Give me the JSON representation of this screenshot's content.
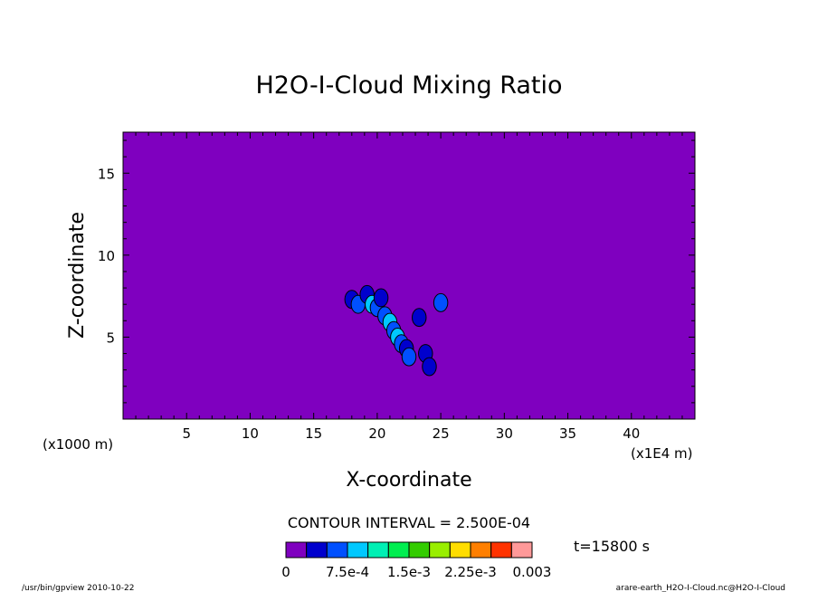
{
  "chart_data": {
    "type": "heatmap",
    "title": "H2O-I-Cloud Mixing Ratio",
    "xlabel": "X-coordinate",
    "ylabel": "Z-coordinate",
    "x_unit_label": "(x1000 m)",
    "x_scale_label": "(x1E4 m)",
    "xlim": [
      0,
      45
    ],
    "ylim": [
      0,
      17.5
    ],
    "x_ticks": [
      5,
      10,
      15,
      20,
      25,
      30,
      35,
      40
    ],
    "y_ticks": [
      5,
      10,
      15
    ],
    "background_color": "#7f00bf",
    "contour_interval_text": "CONTOUR INTERVAL = 2.500E-04",
    "time_text": "t=15800 s",
    "colorbar": {
      "colors": [
        "#7f00bf",
        "#0000cd",
        "#0050ff",
        "#00c8ff",
        "#00f0b4",
        "#00ee50",
        "#33cc00",
        "#99ee00",
        "#ffdd00",
        "#ff7f00",
        "#ff3300",
        "#ff9999"
      ],
      "labels": [
        "0",
        "7.5e-4",
        "1.5e-3",
        "2.25e-3",
        "0.003"
      ],
      "label_values": [
        0,
        0.00075,
        0.0015,
        0.00225,
        0.003
      ],
      "min": 0,
      "max": 0.003
    },
    "cloud_cells": [
      {
        "x": 18.0,
        "z": 7.3,
        "value": 0.00025
      },
      {
        "x": 18.5,
        "z": 7.0,
        "value": 0.0005
      },
      {
        "x": 19.2,
        "z": 7.6,
        "value": 0.00025
      },
      {
        "x": 19.6,
        "z": 7.0,
        "value": 0.00075
      },
      {
        "x": 20.0,
        "z": 6.8,
        "value": 0.0005
      },
      {
        "x": 20.3,
        "z": 7.4,
        "value": 0.00025
      },
      {
        "x": 20.6,
        "z": 6.3,
        "value": 0.0005
      },
      {
        "x": 21.0,
        "z": 5.9,
        "value": 0.00075
      },
      {
        "x": 21.3,
        "z": 5.4,
        "value": 0.0005
      },
      {
        "x": 21.6,
        "z": 5.0,
        "value": 0.00075
      },
      {
        "x": 21.9,
        "z": 4.6,
        "value": 0.0005
      },
      {
        "x": 22.3,
        "z": 4.3,
        "value": 0.00025
      },
      {
        "x": 22.5,
        "z": 3.8,
        "value": 0.0005
      },
      {
        "x": 23.3,
        "z": 6.2,
        "value": 0.00025
      },
      {
        "x": 23.8,
        "z": 4.0,
        "value": 0.00025
      },
      {
        "x": 24.1,
        "z": 3.2,
        "value": 0.00025
      },
      {
        "x": 25.0,
        "z": 7.1,
        "value": 0.0005
      }
    ]
  },
  "footer": {
    "left": "/usr/bin/gpview  2010-10-22",
    "right": "arare-earth_H2O-I-Cloud.nc@H2O-I-Cloud"
  }
}
